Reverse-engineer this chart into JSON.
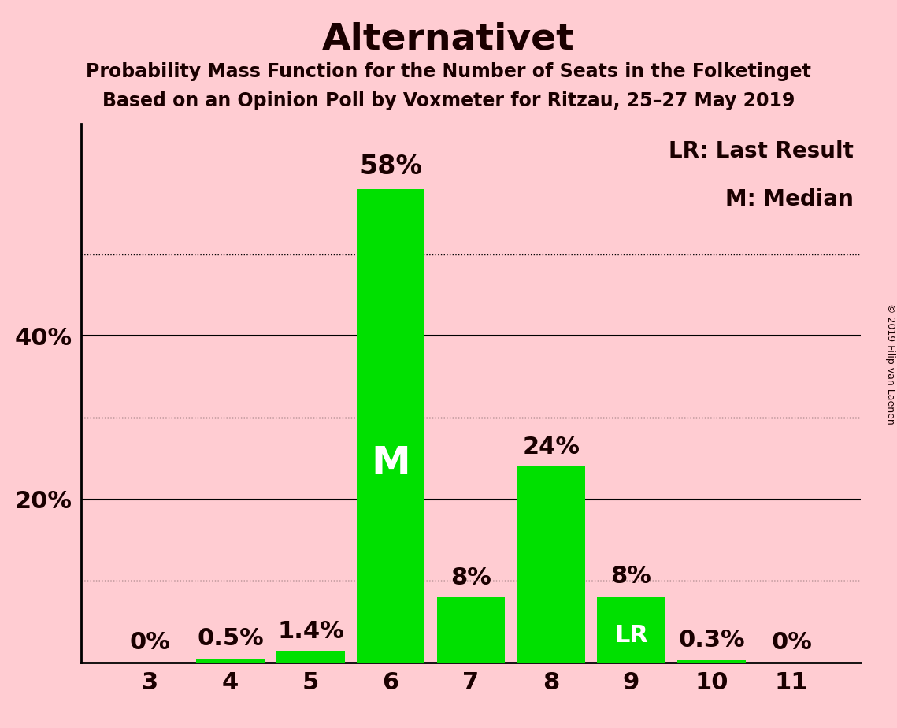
{
  "title": "Alternativet",
  "subtitle1": "Probability Mass Function for the Number of Seats in the Folketinget",
  "subtitle2": "Based on an Opinion Poll by Voxmeter for Ritzau, 25–27 May 2019",
  "copyright": "© 2019 Filip van Laenen",
  "seats": [
    3,
    4,
    5,
    6,
    7,
    8,
    9,
    10,
    11
  ],
  "probabilities": [
    0.0,
    0.5,
    1.4,
    58.0,
    8.0,
    24.0,
    8.0,
    0.3,
    0.0
  ],
  "bar_color": "#00e000",
  "background_color": "#ffccd2",
  "median_seat": 6,
  "lr_seat": 9,
  "ylabel_solid": [
    20,
    40
  ],
  "ylabel_dotted": [
    10,
    30,
    50
  ],
  "ylim": [
    0,
    66
  ],
  "bar_labels": {
    "3": "0%",
    "4": "0.5%",
    "5": "1.4%",
    "6": "58%",
    "7": "8%",
    "8": "24%",
    "9": "8%",
    "10": "0.3%",
    "11": "0%"
  },
  "title_fontsize": 34,
  "subtitle_fontsize": 17,
  "axis_tick_fontsize": 22,
  "bar_label_fontsize": 22,
  "m_label_fontsize": 36,
  "lr_label_fontsize": 22,
  "legend_fontsize": 20,
  "copyright_fontsize": 9
}
